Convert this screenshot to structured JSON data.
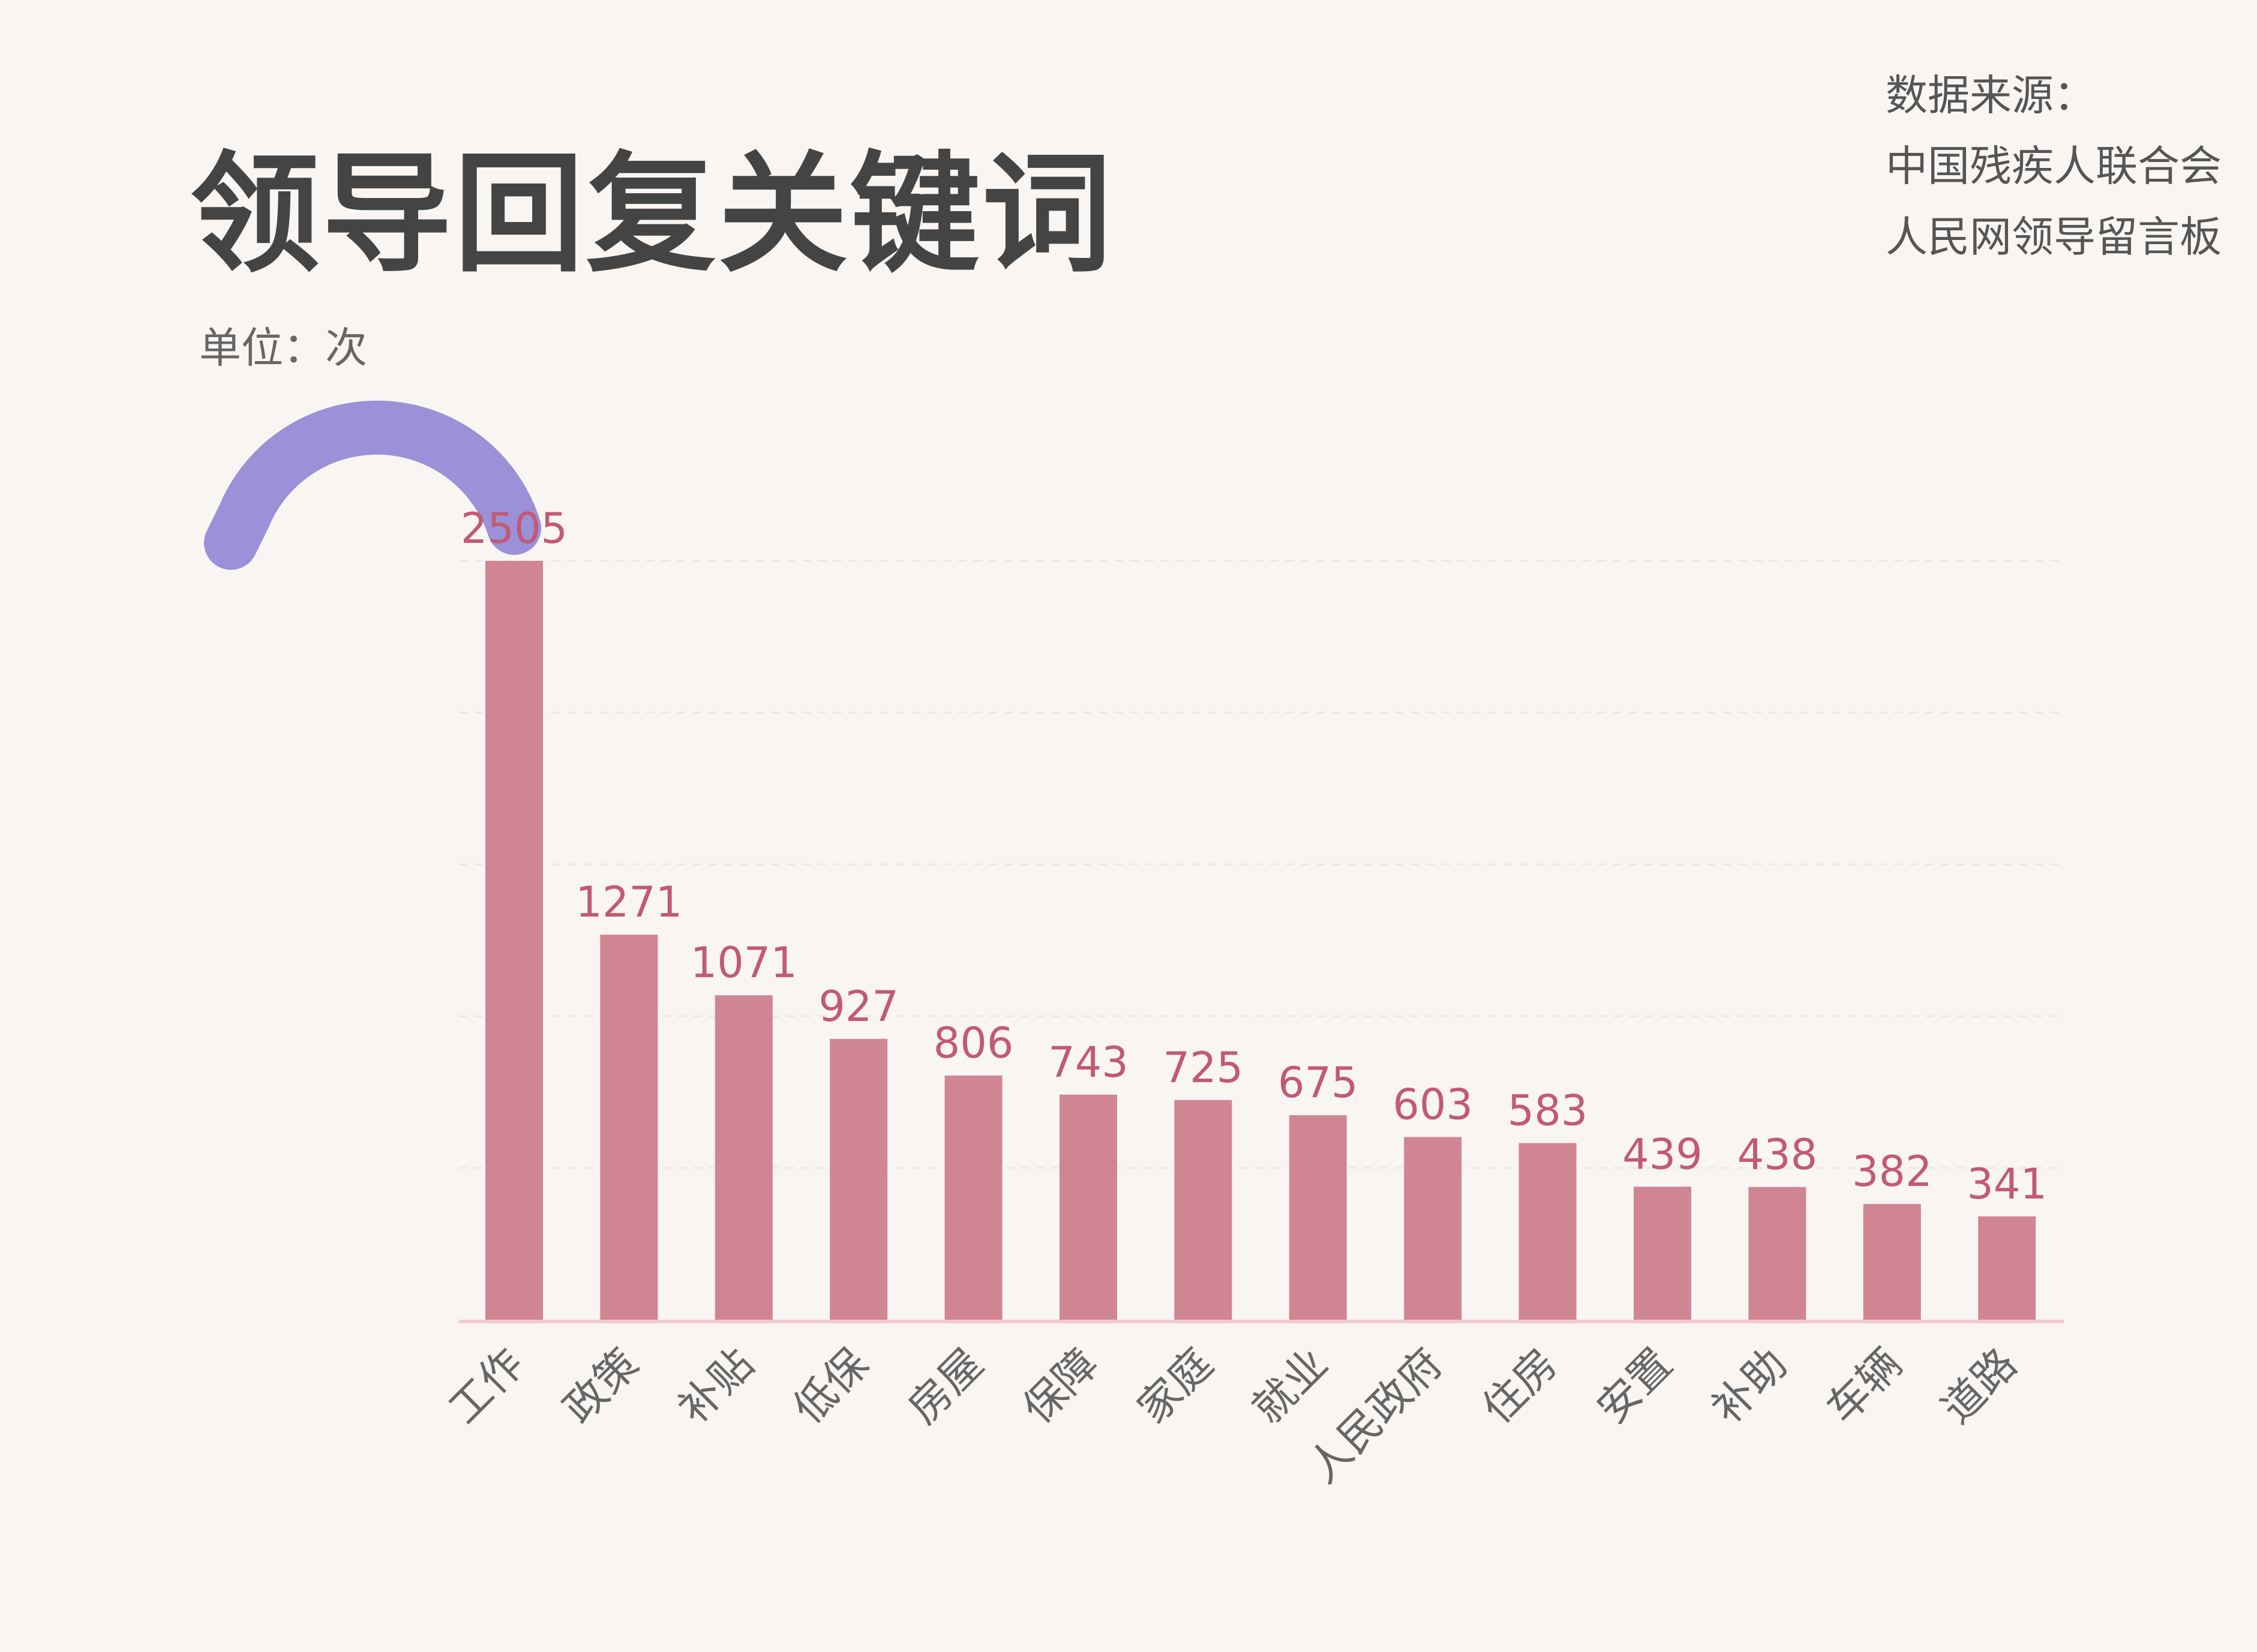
{
  "title": "领导回复关键词",
  "unit": "单位：次",
  "source": {
    "heading": "数据来源：",
    "lines": [
      "中国残疾人联合会",
      "人民网领导留言板"
    ]
  },
  "colors": {
    "bar": "#d08593",
    "label": "#c25a72",
    "handle": "#9a91d8",
    "axis": "#f2c9cf",
    "grid": "#efe6e4"
  },
  "chart_data": {
    "type": "bar",
    "categories": [
      "工作",
      "政策",
      "补贴",
      "低保",
      "房屋",
      "保障",
      "家庭",
      "就业",
      "人民政府",
      "住房",
      "安置",
      "补助",
      "车辆",
      "道路"
    ],
    "values": [
      2505,
      1271,
      1071,
      927,
      806,
      743,
      725,
      675,
      603,
      583,
      439,
      438,
      382,
      341
    ],
    "ylabel": "单位：次",
    "ylim": [
      0,
      2505
    ],
    "grid": true,
    "data_labels": true
  }
}
